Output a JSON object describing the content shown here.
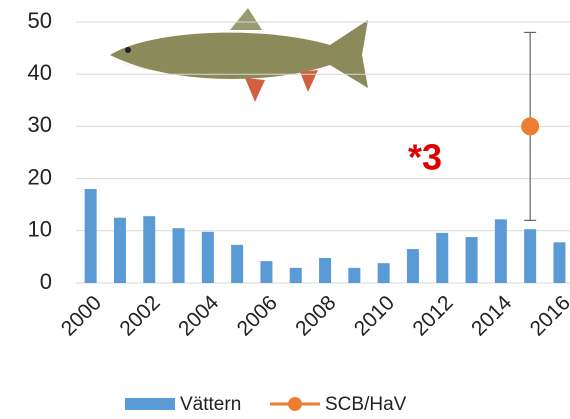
{
  "chart_data": {
    "type": "bar",
    "categories": [
      "2000",
      null,
      "2002",
      null,
      "2004",
      null,
      "2006",
      null,
      "2008",
      null,
      "2010",
      null,
      "2012",
      null,
      "2014",
      null,
      "2016"
    ],
    "series": [
      {
        "name": "Vättern",
        "type": "bar",
        "color": "#5b9bd5",
        "values": [
          18,
          12.5,
          12.8,
          10.5,
          9.8,
          7.3,
          4.2,
          2.9,
          4.8,
          2.9,
          3.8,
          6.5,
          9.6,
          8.8,
          12.2,
          10.3,
          7.8
        ]
      },
      {
        "name": "SCB/HaV",
        "type": "point",
        "color": "#ed7d31",
        "values": [
          null,
          null,
          null,
          null,
          null,
          null,
          null,
          null,
          null,
          null,
          null,
          null,
          null,
          null,
          null,
          30,
          null
        ],
        "errors": [
          null,
          null,
          null,
          null,
          null,
          null,
          null,
          null,
          null,
          null,
          null,
          null,
          null,
          null,
          null,
          18,
          null
        ]
      }
    ],
    "annotation": "*3",
    "ylim": [
      0,
      50
    ],
    "yticks": [
      0,
      10,
      20,
      30,
      40,
      50
    ],
    "grid": true
  }
}
